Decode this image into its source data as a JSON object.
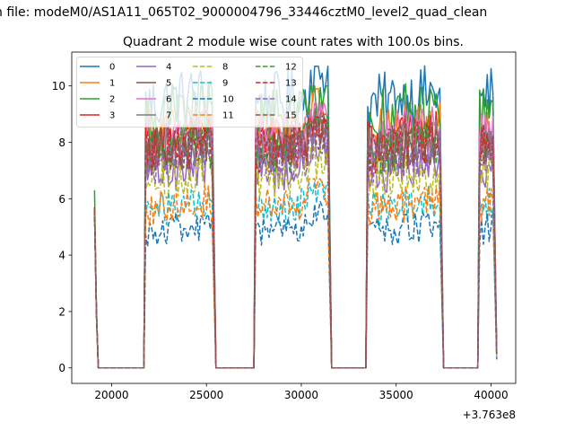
{
  "suptitle": "n file: modeM0/AS1A11_065T02_9000004796_33446cztM0_level2_quad_clean",
  "chart_data": {
    "type": "line",
    "title": "Quadrant 2 module wise count rates with 100.0s bins.",
    "xlabel": "",
    "ylabel": "",
    "x_offset_label": "+3.763e8",
    "x_offset": 376300000,
    "xlim": [
      17900,
      41300
    ],
    "ylim": [
      -0.55,
      11.2
    ],
    "xticks": [
      20000,
      25000,
      30000,
      35000,
      40000
    ],
    "xtick_labels": [
      "20000",
      "25000",
      "30000",
      "35000",
      "40000"
    ],
    "yticks": [
      0,
      2,
      4,
      6,
      8,
      10
    ],
    "ytick_labels": [
      "0",
      "2",
      "4",
      "6",
      "8",
      "10"
    ],
    "grid": false,
    "legend": {
      "location": "upper-left",
      "columns": 4
    },
    "bin_width_s": 100,
    "segments": [
      {
        "start": 19100,
        "end": 19300,
        "rate_profile": "falling"
      },
      {
        "start": 21700,
        "end": 25500,
        "rate_profile": "active"
      },
      {
        "start": 27500,
        "end": 31600,
        "rate_profile": "active"
      },
      {
        "start": 33400,
        "end": 37500,
        "rate_profile": "active"
      },
      {
        "start": 39300,
        "end": 40300,
        "rate_profile": "active"
      }
    ],
    "series": [
      {
        "name": "0",
        "color": "#1f77b4",
        "dash": "solid",
        "mean_rate": 9.7,
        "start_rate": 5.6,
        "peak_rate": 10.7,
        "end_rate": 0.5
      },
      {
        "name": "1",
        "color": "#ff7f0e",
        "dash": "solid",
        "mean_rate": 8.6,
        "start_rate": 5.7,
        "peak_rate": 9.9,
        "end_rate": 0.5
      },
      {
        "name": "2",
        "color": "#2ca02c",
        "dash": "solid",
        "mean_rate": 9.2,
        "start_rate": 6.3,
        "peak_rate": 10.0,
        "end_rate": 0.5
      },
      {
        "name": "3",
        "color": "#d62728",
        "dash": "solid",
        "mean_rate": 8.2,
        "start_rate": 5.7,
        "peak_rate": 9.2,
        "end_rate": 0.5
      },
      {
        "name": "4",
        "color": "#9467bd",
        "dash": "solid",
        "mean_rate": 7.2,
        "start_rate": 5.6,
        "peak_rate": 8.3,
        "end_rate": 0.5
      },
      {
        "name": "5",
        "color": "#8c564b",
        "dash": "solid",
        "mean_rate": 8.0,
        "start_rate": 5.6,
        "peak_rate": 9.0,
        "end_rate": 0.5
      },
      {
        "name": "6",
        "color": "#e377c2",
        "dash": "solid",
        "mean_rate": 8.4,
        "start_rate": 5.6,
        "peak_rate": 9.4,
        "end_rate": 0.5
      },
      {
        "name": "7",
        "color": "#7f7f7f",
        "dash": "solid",
        "mean_rate": 8.0,
        "start_rate": 5.6,
        "peak_rate": 9.0,
        "end_rate": 0.5
      },
      {
        "name": "8",
        "color": "#bcbd22",
        "dash": "dashed",
        "mean_rate": 6.9,
        "start_rate": 5.6,
        "peak_rate": 7.8,
        "end_rate": 0.5
      },
      {
        "name": "9",
        "color": "#17becf",
        "dash": "dashed",
        "mean_rate": 5.8,
        "start_rate": 5.6,
        "peak_rate": 6.6,
        "end_rate": 0.4
      },
      {
        "name": "10",
        "color": "#1f77b4",
        "dash": "dashed",
        "mean_rate": 5.0,
        "start_rate": 5.6,
        "peak_rate": 5.9,
        "end_rate": 0.3
      },
      {
        "name": "11",
        "color": "#ff7f0e",
        "dash": "dashed",
        "mean_rate": 5.9,
        "start_rate": 5.6,
        "peak_rate": 6.7,
        "end_rate": 0.4
      },
      {
        "name": "12",
        "color": "#2ca02c",
        "dash": "dashed",
        "mean_rate": 7.9,
        "start_rate": 5.6,
        "peak_rate": 8.9,
        "end_rate": 0.5
      },
      {
        "name": "13",
        "color": "#d62728",
        "dash": "dashed",
        "mean_rate": 8.0,
        "start_rate": 5.6,
        "peak_rate": 8.9,
        "end_rate": 0.5
      },
      {
        "name": "14",
        "color": "#9467bd",
        "dash": "dashed",
        "mean_rate": 7.6,
        "start_rate": 5.6,
        "peak_rate": 8.5,
        "end_rate": 0.5
      },
      {
        "name": "15",
        "color": "#8c564b",
        "dash": "dashed",
        "mean_rate": 7.9,
        "start_rate": 5.6,
        "peak_rate": 8.8,
        "end_rate": 0.5
      }
    ]
  }
}
